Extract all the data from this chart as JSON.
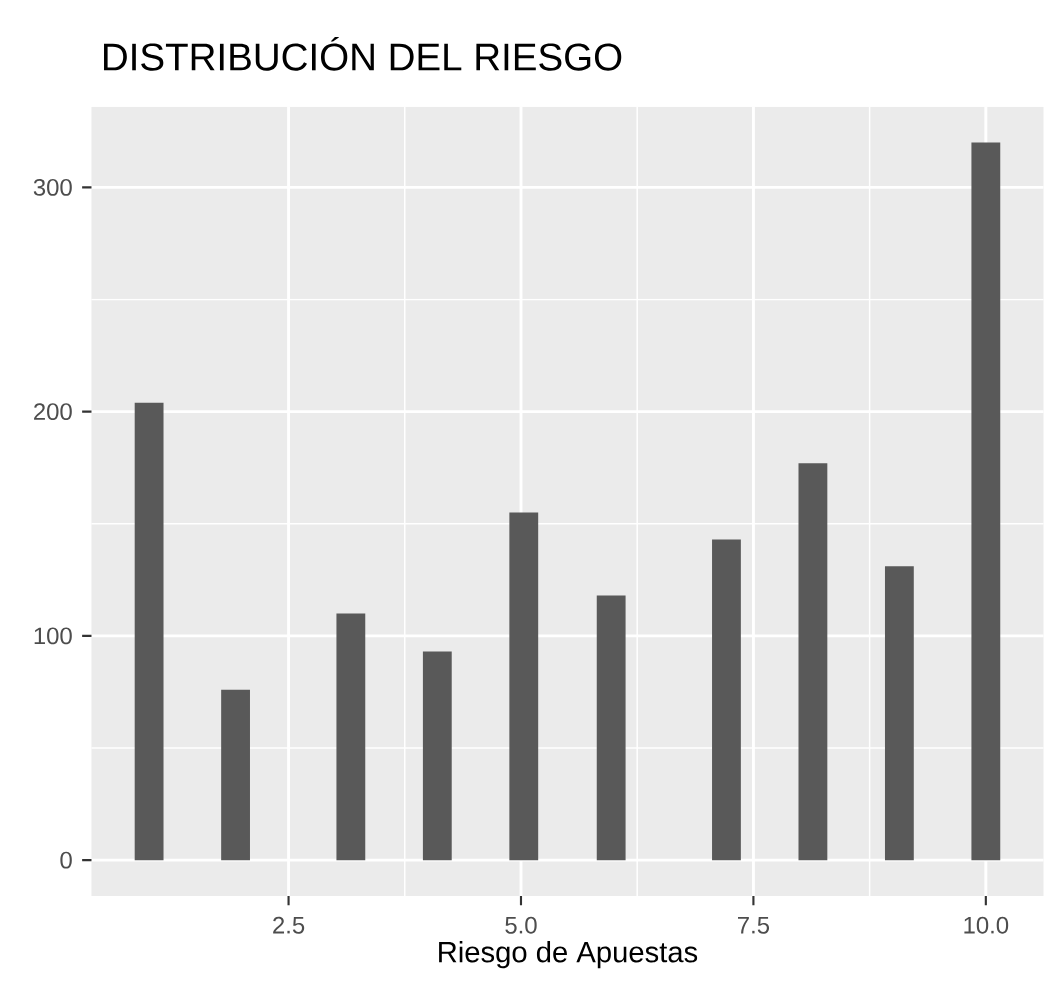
{
  "chart_data": {
    "type": "bar",
    "title": "DISTRIBUCIÓN DEL RIESGO",
    "xlabel": "Riesgo de Apuestas",
    "x": [
      1.0,
      1.93,
      3.17,
      4.1,
      5.03,
      5.97,
      7.21,
      8.14,
      9.07,
      10.0
    ],
    "values": [
      204,
      76,
      110,
      93,
      155,
      118,
      143,
      177,
      131,
      320
    ],
    "color": "#595959",
    "xlim": [
      0.38,
      10.62
    ],
    "ylim": [
      -16,
      336
    ],
    "xticks": [
      2.5,
      {
        "value": 5,
        "label": "5.0"
      },
      7.5,
      {
        "value": 10,
        "label": "10.0"
      }
    ],
    "yticks": [
      0,
      100,
      200,
      300
    ],
    "grid": true
  }
}
